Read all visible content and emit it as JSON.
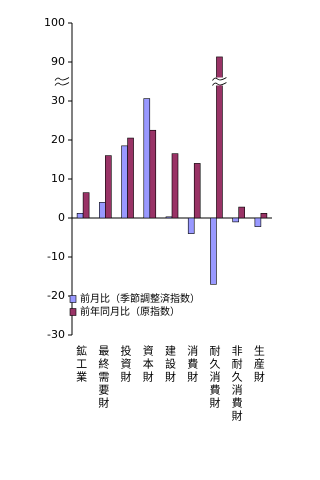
{
  "chart_data": {
    "type": "bar",
    "categories": [
      "鉱工業",
      "最終需要財",
      "投資財",
      "資本財",
      "建設財",
      "消費財",
      "耐久消費財",
      "非耐久消費財",
      "生産財"
    ],
    "series": [
      {
        "name": "前月比（季節調整済指数）",
        "color": "#9999ff",
        "values": [
          1.2,
          4,
          18.5,
          33.7,
          0.3,
          -4,
          -17,
          -1,
          -2.2
        ]
      },
      {
        "name": "前年同月比（原指数）",
        "color": "#993366",
        "values": [
          6.5,
          16,
          20.5,
          22.5,
          16.5,
          14,
          91.3,
          2.8,
          1.2
        ]
      }
    ],
    "ylim": [
      -30,
      100
    ],
    "yticks": [
      -30,
      -20,
      -10,
      0,
      10,
      20,
      30,
      90,
      100
    ],
    "axis_break": [
      30,
      90
    ],
    "grid": false,
    "legend": "lower left"
  }
}
